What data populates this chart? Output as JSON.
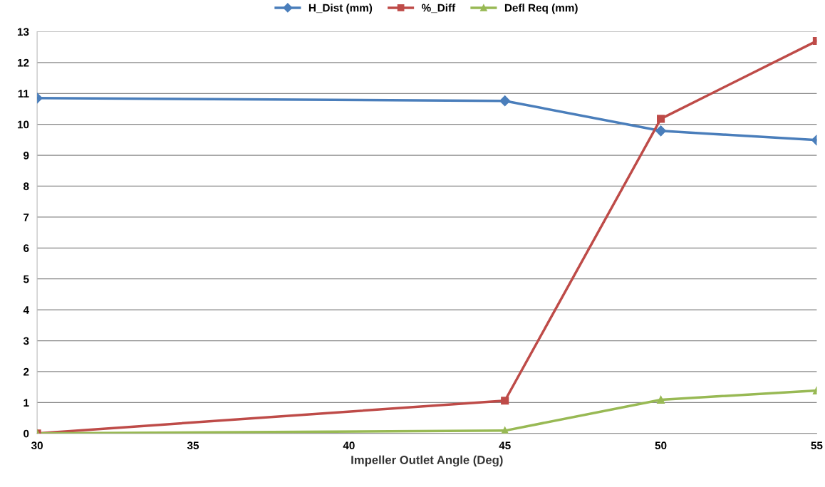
{
  "chart_data": {
    "type": "line",
    "xlabel": "Impeller Outlet Angle (Deg)",
    "x": [
      30,
      45,
      50,
      55
    ],
    "series": [
      {
        "name": "H_Dist (mm)",
        "color": "#4a7ebb",
        "marker": "diamond",
        "values": [
          10.85,
          10.76,
          9.79,
          9.49
        ]
      },
      {
        "name": "%_Diff",
        "color": "#be4b48",
        "marker": "square",
        "values": [
          0,
          1.06,
          10.18,
          12.7
        ]
      },
      {
        "name": "Defl Req (mm)",
        "color": "#98b954",
        "marker": "triangle",
        "values": [
          0,
          0.09,
          1.09,
          1.39
        ]
      }
    ],
    "xlim": [
      30,
      55
    ],
    "xticks": [
      30,
      35,
      40,
      45,
      50,
      55
    ],
    "ylim": [
      0,
      13
    ],
    "yticks": [
      0,
      1,
      2,
      3,
      4,
      5,
      6,
      7,
      8,
      9,
      10,
      11,
      12,
      13
    ],
    "grid": "y",
    "legend": "top",
    "line_style": "solid"
  }
}
